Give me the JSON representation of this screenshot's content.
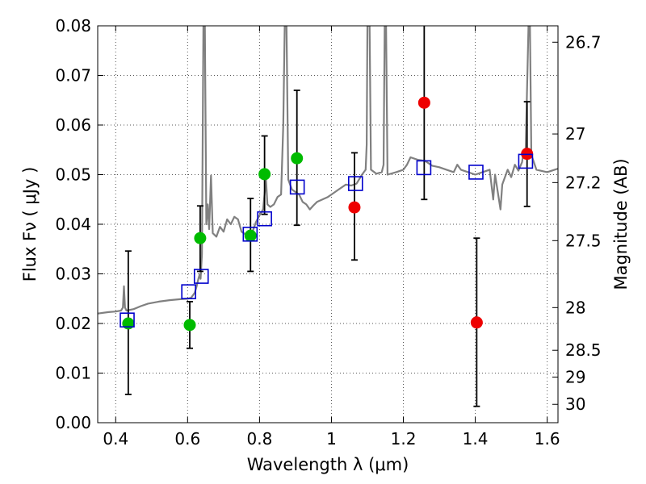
{
  "chart_data": {
    "type": "scatter",
    "xlabel": "Wavelength  λ (μm)",
    "ylabel": "Flux  Fν  ( μJy )",
    "ylabel_right": "Magnitude (AB)",
    "xlim": [
      0.35,
      1.63
    ],
    "ylim": [
      0.0,
      0.08
    ],
    "grid": true,
    "x_ticks": [
      {
        "value": 0.4,
        "label": "0.4"
      },
      {
        "value": 0.6,
        "label": "0.6"
      },
      {
        "value": 0.8,
        "label": "0.8"
      },
      {
        "value": 1.0,
        "label": "1"
      },
      {
        "value": 1.2,
        "label": "1.2"
      },
      {
        "value": 1.4,
        "label": "1.4"
      },
      {
        "value": 1.6,
        "label": "1.6"
      }
    ],
    "y_ticks": [
      {
        "value": 0.0,
        "label": "0.00"
      },
      {
        "value": 0.01,
        "label": "0.01"
      },
      {
        "value": 0.02,
        "label": "0.02"
      },
      {
        "value": 0.03,
        "label": "0.03"
      },
      {
        "value": 0.04,
        "label": "0.04"
      },
      {
        "value": 0.05,
        "label": "0.05"
      },
      {
        "value": 0.06,
        "label": "0.06"
      },
      {
        "value": 0.07,
        "label": "0.07"
      },
      {
        "value": 0.08,
        "label": "0.08"
      }
    ],
    "right_ticks": [
      {
        "label": "26.7",
        "flux": 0.0767
      },
      {
        "label": "27",
        "flux": 0.0582
      },
      {
        "label": "27.2",
        "flux": 0.0484
      },
      {
        "label": "27.5",
        "flux": 0.0367
      },
      {
        "label": "28",
        "flux": 0.0232
      },
      {
        "label": "28.5",
        "flux": 0.0146
      },
      {
        "label": "29",
        "flux": 0.0092
      },
      {
        "label": "30",
        "flux": 0.0037
      }
    ],
    "colors": {
      "spectrum": "#808080",
      "green": "#00bb00",
      "red": "#ee0000",
      "model_box": "#0000cc",
      "errorbar": "#000000",
      "grid": "#555555"
    },
    "series": [
      {
        "marker": "circle-green",
        "points": [
          {
            "x": 0.435,
            "y": 0.02,
            "err_lo": 0.0057,
            "err_hi": 0.0346
          },
          {
            "x": 0.606,
            "y": 0.0197,
            "err_lo": 0.015,
            "err_hi": 0.0244
          },
          {
            "x": 0.635,
            "y": 0.0372,
            "err_lo": 0.0305,
            "err_hi": 0.0437
          },
          {
            "x": 0.775,
            "y": 0.0377,
            "err_lo": 0.0305,
            "err_hi": 0.0452
          },
          {
            "x": 0.814,
            "y": 0.0501,
            "err_lo": 0.042,
            "err_hi": 0.0578
          },
          {
            "x": 0.904,
            "y": 0.0533,
            "err_lo": 0.0398,
            "err_hi": 0.067
          }
        ]
      },
      {
        "marker": "circle-red",
        "points": [
          {
            "x": 1.064,
            "y": 0.0434,
            "err_lo": 0.0328,
            "err_hi": 0.0544
          },
          {
            "x": 1.258,
            "y": 0.0645,
            "err_lo": 0.045,
            "err_hi": 0.08
          },
          {
            "x": 1.404,
            "y": 0.0202,
            "err_lo": 0.0033,
            "err_hi": 0.0372
          },
          {
            "x": 1.544,
            "y": 0.0542,
            "err_lo": 0.0436,
            "err_hi": 0.0647
          }
        ]
      },
      {
        "marker": "square-blue",
        "points": [
          {
            "x": 0.432,
            "y": 0.0207
          },
          {
            "x": 0.603,
            "y": 0.0264
          },
          {
            "x": 0.638,
            "y": 0.0295
          },
          {
            "x": 0.774,
            "y": 0.038
          },
          {
            "x": 0.814,
            "y": 0.0411
          },
          {
            "x": 0.905,
            "y": 0.0475
          },
          {
            "x": 1.067,
            "y": 0.0482
          },
          {
            "x": 1.257,
            "y": 0.0514
          },
          {
            "x": 1.402,
            "y": 0.0505
          },
          {
            "x": 1.54,
            "y": 0.0527
          }
        ]
      }
    ],
    "spectrum": [
      [
        0.35,
        0.022
      ],
      [
        0.38,
        0.0223
      ],
      [
        0.4,
        0.0224
      ],
      [
        0.415,
        0.0226
      ],
      [
        0.42,
        0.0232
      ],
      [
        0.423,
        0.0275
      ],
      [
        0.426,
        0.0232
      ],
      [
        0.43,
        0.0226
      ],
      [
        0.45,
        0.0229
      ],
      [
        0.47,
        0.0235
      ],
      [
        0.49,
        0.024
      ],
      [
        0.52,
        0.0244
      ],
      [
        0.55,
        0.0247
      ],
      [
        0.58,
        0.0249
      ],
      [
        0.6,
        0.025
      ],
      [
        0.61,
        0.0252
      ],
      [
        0.62,
        0.0262
      ],
      [
        0.625,
        0.0275
      ],
      [
        0.63,
        0.029
      ],
      [
        0.634,
        0.03
      ],
      [
        0.636,
        0.029
      ],
      [
        0.64,
        0.034
      ],
      [
        0.644,
        0.08
      ],
      [
        0.648,
        0.08
      ],
      [
        0.652,
        0.04
      ],
      [
        0.656,
        0.044
      ],
      [
        0.66,
        0.039
      ],
      [
        0.665,
        0.0498
      ],
      [
        0.67,
        0.0382
      ],
      [
        0.68,
        0.0375
      ],
      [
        0.69,
        0.0395
      ],
      [
        0.7,
        0.0385
      ],
      [
        0.71,
        0.041
      ],
      [
        0.72,
        0.04
      ],
      [
        0.73,
        0.0415
      ],
      [
        0.74,
        0.041
      ],
      [
        0.75,
        0.0385
      ],
      [
        0.76,
        0.038
      ],
      [
        0.77,
        0.0376
      ],
      [
        0.78,
        0.0384
      ],
      [
        0.79,
        0.0404
      ],
      [
        0.8,
        0.0418
      ],
      [
        0.81,
        0.043
      ],
      [
        0.818,
        0.049
      ],
      [
        0.822,
        0.044
      ],
      [
        0.83,
        0.0435
      ],
      [
        0.84,
        0.044
      ],
      [
        0.85,
        0.0455
      ],
      [
        0.86,
        0.046
      ],
      [
        0.866,
        0.06
      ],
      [
        0.87,
        0.08
      ],
      [
        0.875,
        0.08
      ],
      [
        0.88,
        0.049
      ],
      [
        0.89,
        0.047
      ],
      [
        0.9,
        0.0465
      ],
      [
        0.91,
        0.046
      ],
      [
        0.92,
        0.0445
      ],
      [
        0.93,
        0.044
      ],
      [
        0.94,
        0.043
      ],
      [
        0.95,
        0.0438
      ],
      [
        0.96,
        0.0445
      ],
      [
        0.975,
        0.045
      ],
      [
        0.99,
        0.0455
      ],
      [
        1.0,
        0.046
      ],
      [
        1.02,
        0.047
      ],
      [
        1.04,
        0.048
      ],
      [
        1.055,
        0.0478
      ],
      [
        1.07,
        0.0482
      ],
      [
        1.085,
        0.05
      ],
      [
        1.095,
        0.051
      ],
      [
        1.098,
        0.056
      ],
      [
        1.1,
        0.08
      ],
      [
        1.106,
        0.08
      ],
      [
        1.11,
        0.051
      ],
      [
        1.125,
        0.0502
      ],
      [
        1.14,
        0.0505
      ],
      [
        1.145,
        0.052
      ],
      [
        1.148,
        0.08
      ],
      [
        1.152,
        0.08
      ],
      [
        1.156,
        0.05
      ],
      [
        1.18,
        0.0505
      ],
      [
        1.2,
        0.051
      ],
      [
        1.21,
        0.052
      ],
      [
        1.22,
        0.0535
      ],
      [
        1.24,
        0.053
      ],
      [
        1.26,
        0.0528
      ],
      [
        1.28,
        0.0518
      ],
      [
        1.3,
        0.0515
      ],
      [
        1.32,
        0.051
      ],
      [
        1.34,
        0.0505
      ],
      [
        1.35,
        0.052
      ],
      [
        1.36,
        0.051
      ],
      [
        1.38,
        0.0505
      ],
      [
        1.4,
        0.05
      ],
      [
        1.42,
        0.0505
      ],
      [
        1.44,
        0.051
      ],
      [
        1.45,
        0.045
      ],
      [
        1.455,
        0.05
      ],
      [
        1.47,
        0.043
      ],
      [
        1.475,
        0.048
      ],
      [
        1.49,
        0.051
      ],
      [
        1.5,
        0.0495
      ],
      [
        1.51,
        0.052
      ],
      [
        1.52,
        0.0508
      ],
      [
        1.53,
        0.0525
      ],
      [
        1.535,
        0.055
      ],
      [
        1.54,
        0.0545
      ],
      [
        1.548,
        0.08
      ],
      [
        1.552,
        0.08
      ],
      [
        1.556,
        0.054
      ],
      [
        1.57,
        0.051
      ],
      [
        1.6,
        0.0505
      ],
      [
        1.63,
        0.0512
      ]
    ]
  }
}
